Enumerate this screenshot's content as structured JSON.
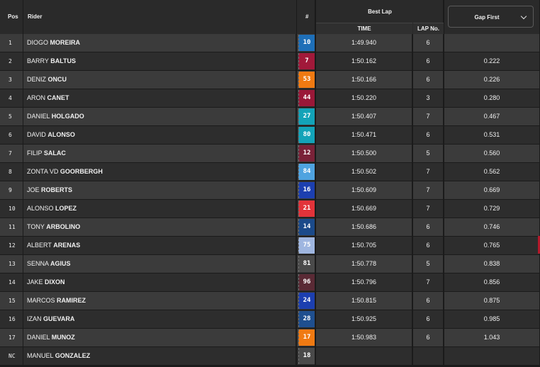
{
  "header": {
    "pos": "Pos",
    "rider": "Rider",
    "num": "#",
    "best_lap": "Best Lap",
    "time": "TIME",
    "lap_no": "LAP No.",
    "gap_select": "Gap First"
  },
  "rows": [
    {
      "pos": "1",
      "first": "DIOGO",
      "last": "MOREIRA",
      "tyre": "P",
      "num": "10",
      "color": "#1e6fb8",
      "time": "1:49.940",
      "lap": "6",
      "gap": ""
    },
    {
      "pos": "2",
      "first": "BARRY",
      "last": "BALTUS",
      "tyre": "P",
      "num": "7",
      "color": "#a1193a",
      "time": "1:50.162",
      "lap": "6",
      "gap": "0.222"
    },
    {
      "pos": "3",
      "first": "DENIZ",
      "last": "ONCU",
      "tyre": "P",
      "num": "53",
      "color": "#f07a12",
      "time": "1:50.166",
      "lap": "6",
      "gap": "0.226"
    },
    {
      "pos": "4",
      "first": "ARON",
      "last": "CANET",
      "tyre": "P",
      "num": "44",
      "color": "#9a1838",
      "time": "1:50.220",
      "lap": "3",
      "gap": "0.280"
    },
    {
      "pos": "5",
      "first": "DANIEL",
      "last": "HOLGADO",
      "tyre": "P",
      "num": "27",
      "color": "#13a3b8",
      "time": "1:50.407",
      "lap": "7",
      "gap": "0.467"
    },
    {
      "pos": "6",
      "first": "DAVID",
      "last": "ALONSO",
      "tyre": "P",
      "num": "80",
      "color": "#13a3b8",
      "time": "1:50.471",
      "lap": "6",
      "gap": "0.531"
    },
    {
      "pos": "7",
      "first": "FILIP",
      "last": "SALAC",
      "tyre": "P",
      "num": "12",
      "color": "#7a2238",
      "time": "1:50.500",
      "lap": "5",
      "gap": "0.560"
    },
    {
      "pos": "8",
      "first": "ZONTA VD",
      "last": "GOORBERGH",
      "tyre": "P",
      "num": "84",
      "color": "#4fa3e0",
      "time": "1:50.502",
      "lap": "7",
      "gap": "0.562"
    },
    {
      "pos": "9",
      "first": "JOE",
      "last": "ROBERTS",
      "tyre": "P",
      "num": "16",
      "color": "#1c3fb0",
      "time": "1:50.609",
      "lap": "7",
      "gap": "0.669"
    },
    {
      "pos": "10",
      "first": "ALONSO",
      "last": "LOPEZ",
      "tyre": "P",
      "num": "21",
      "color": "#e2333a",
      "time": "1:50.669",
      "lap": "7",
      "gap": "0.729"
    },
    {
      "pos": "11",
      "first": "TONY",
      "last": "ARBOLINO",
      "tyre": "P",
      "num": "14",
      "color": "#1b4a8a",
      "time": "1:50.686",
      "lap": "6",
      "gap": "0.746"
    },
    {
      "pos": "12",
      "first": "ALBERT",
      "last": "ARENAS",
      "tyre": "",
      "num": "75",
      "color": "#9fb6e0",
      "time": "1:50.705",
      "lap": "6",
      "gap": "0.765"
    },
    {
      "pos": "13",
      "first": "SENNA",
      "last": "AGIUS",
      "tyre": "P",
      "num": "81",
      "color": "#4a4a4a",
      "time": "1:50.778",
      "lap": "5",
      "gap": "0.838"
    },
    {
      "pos": "14",
      "first": "JAKE",
      "last": "DIXON",
      "tyre": "P",
      "num": "96",
      "color": "#5a2a35",
      "time": "1:50.796",
      "lap": "7",
      "gap": "0.856"
    },
    {
      "pos": "15",
      "first": "MARCOS",
      "last": "RAMIREZ",
      "tyre": "P",
      "num": "24",
      "color": "#1c3fb0",
      "time": "1:50.815",
      "lap": "6",
      "gap": "0.875"
    },
    {
      "pos": "16",
      "first": "IZAN",
      "last": "GUEVARA",
      "tyre": "P",
      "num": "28",
      "color": "#1f4f8f",
      "time": "1:50.925",
      "lap": "6",
      "gap": "0.985"
    },
    {
      "pos": "17",
      "first": "DANIEL",
      "last": "MUNOZ",
      "tyre": "P",
      "num": "17",
      "color": "#f07a12",
      "time": "1:50.983",
      "lap": "6",
      "gap": "1.043"
    },
    {
      "pos": "NC",
      "first": "MANUEL",
      "last": "GONZALEZ",
      "tyre": "",
      "num": "18",
      "color": "#4a4a4a",
      "time": "",
      "lap": "",
      "gap": ""
    }
  ]
}
